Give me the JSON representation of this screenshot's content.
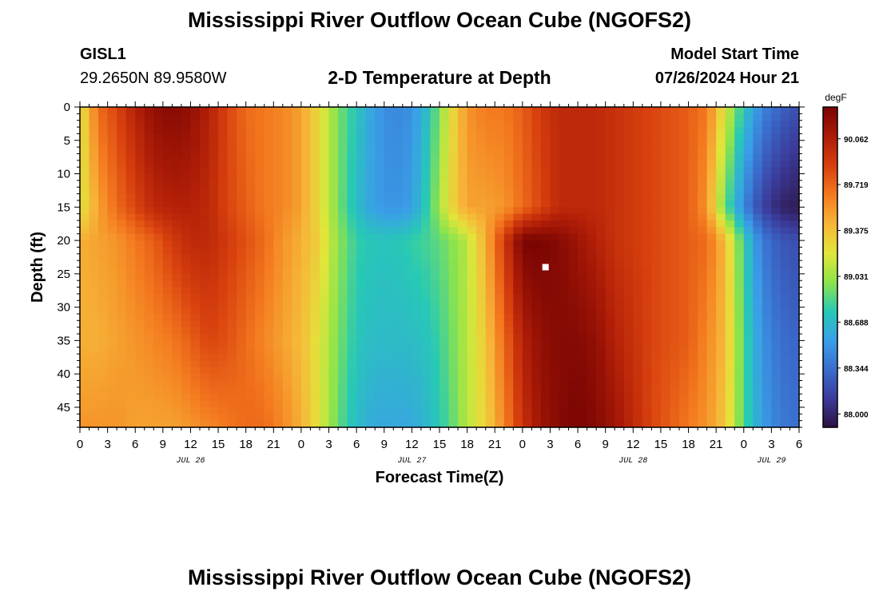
{
  "header": {
    "title": "Mississippi River Outflow Ocean Cube (NGOFS2)",
    "station": "GISL1",
    "coords": "29.2650N  89.9580W",
    "subtitle": "2-D Temperature at Depth",
    "model_start_label": "Model Start Time",
    "model_start_value": "07/26/2024 Hour 21",
    "bottom_title": "Mississippi River Outflow Ocean Cube (NGOFS2)"
  },
  "chart_data": {
    "type": "heatmap",
    "title": "2-D Temperature at Depth",
    "xlabel": "Forecast Time(Z)",
    "ylabel": "Depth (ft)",
    "x_tick_labels": [
      "0",
      "3",
      "6",
      "9",
      "12",
      "15",
      "18",
      "21",
      "0",
      "3",
      "6",
      "9",
      "12",
      "15",
      "18",
      "21",
      "0",
      "3",
      "6",
      "9",
      "12",
      "15",
      "18",
      "21",
      "0",
      "3",
      "6"
    ],
    "x_date_labels": [
      {
        "label": "JUL 26",
        "hour": 12
      },
      {
        "label": "JUL 27",
        "hour": 36
      },
      {
        "label": "JUL 28",
        "hour": 60
      },
      {
        "label": "JUL 29",
        "hour": 75
      }
    ],
    "xlim_hours": [
      0,
      78
    ],
    "y_ticks": [
      0,
      5,
      10,
      15,
      20,
      25,
      30,
      35,
      40,
      45
    ],
    "ylim": [
      0,
      48
    ],
    "y_reversed": true,
    "colorbar": {
      "unit": "degF",
      "ticks": [
        "90.062",
        "89.719",
        "89.375",
        "89.031",
        "88.688",
        "88.344",
        "88.000"
      ],
      "tick_values": [
        90.062,
        89.719,
        89.375,
        89.031,
        88.688,
        88.344,
        88.0
      ],
      "range": [
        87.9,
        90.3
      ],
      "colors": [
        "#2d1140",
        "#3b3b9a",
        "#3a6ccd",
        "#3a9fe8",
        "#27c9b5",
        "#8ee44a",
        "#e2e53a",
        "#f6b638",
        "#f47a1f",
        "#d8400e",
        "#ad1c07",
        "#7a0503"
      ]
    },
    "marker": {
      "hour": 50.5,
      "depth_ft": 24
    },
    "profiles": {
      "hours": [
        0,
        2,
        4,
        6,
        8,
        10,
        12,
        14,
        16,
        18,
        20,
        22,
        24,
        26,
        28,
        30,
        32,
        34,
        36,
        38,
        40,
        42,
        44,
        46,
        48,
        50,
        52,
        54,
        56,
        58,
        60,
        62,
        64,
        66,
        68,
        70,
        72,
        74,
        76,
        78
      ],
      "depths_ft": [
        0,
        15,
        20,
        35,
        48
      ],
      "temps_degF": [
        [
          89.2,
          89.2,
          89.45,
          89.45,
          89.55
        ],
        [
          89.7,
          89.5,
          89.5,
          89.45,
          89.55
        ],
        [
          89.85,
          89.7,
          89.55,
          89.5,
          89.55
        ],
        [
          90.05,
          89.85,
          89.65,
          89.55,
          89.5
        ],
        [
          90.2,
          90.0,
          89.75,
          89.6,
          89.5
        ],
        [
          90.25,
          90.05,
          89.9,
          89.65,
          89.5
        ],
        [
          90.2,
          90.05,
          90.0,
          89.75,
          89.55
        ],
        [
          90.05,
          90.0,
          90.0,
          89.85,
          89.6
        ],
        [
          89.85,
          89.85,
          89.9,
          89.8,
          89.65
        ],
        [
          89.7,
          89.75,
          89.8,
          89.7,
          89.7
        ],
        [
          89.65,
          89.65,
          89.7,
          89.6,
          89.7
        ],
        [
          89.6,
          89.6,
          89.55,
          89.5,
          89.6
        ],
        [
          89.5,
          89.5,
          89.45,
          89.4,
          89.45
        ],
        [
          89.25,
          89.25,
          89.3,
          89.2,
          89.2
        ],
        [
          88.95,
          88.95,
          89.0,
          88.95,
          88.9
        ],
        [
          88.75,
          88.7,
          88.8,
          88.75,
          88.7
        ],
        [
          88.55,
          88.55,
          88.75,
          88.7,
          88.6
        ],
        [
          88.45,
          88.5,
          88.75,
          88.7,
          88.6
        ],
        [
          88.5,
          88.55,
          88.8,
          88.7,
          88.6
        ],
        [
          88.75,
          88.85,
          88.85,
          88.75,
          88.7
        ],
        [
          89.2,
          89.25,
          88.95,
          88.9,
          88.85
        ],
        [
          89.55,
          89.5,
          89.1,
          89.1,
          89.1
        ],
        [
          89.65,
          89.5,
          89.45,
          89.35,
          89.3
        ],
        [
          89.65,
          89.55,
          89.9,
          89.7,
          89.6
        ],
        [
          89.75,
          89.7,
          90.3,
          90.05,
          89.95
        ],
        [
          89.9,
          89.85,
          90.3,
          90.2,
          90.15
        ],
        [
          90.0,
          90.0,
          90.25,
          90.25,
          90.25
        ],
        [
          90.0,
          90.0,
          90.15,
          90.25,
          90.3
        ],
        [
          90.0,
          90.0,
          90.05,
          90.2,
          90.25
        ],
        [
          89.95,
          89.95,
          89.95,
          90.05,
          90.15
        ],
        [
          89.9,
          89.9,
          89.9,
          89.95,
          90.0
        ],
        [
          89.85,
          89.85,
          89.85,
          89.85,
          89.85
        ],
        [
          89.8,
          89.8,
          89.8,
          89.8,
          89.75
        ],
        [
          89.75,
          89.75,
          89.75,
          89.75,
          89.65
        ],
        [
          89.65,
          89.55,
          89.7,
          89.6,
          89.55
        ],
        [
          89.2,
          88.9,
          89.4,
          89.4,
          89.35
        ],
        [
          88.75,
          88.45,
          88.8,
          88.85,
          88.85
        ],
        [
          88.45,
          88.15,
          88.4,
          88.5,
          88.55
        ],
        [
          88.3,
          88.0,
          88.25,
          88.35,
          88.4
        ],
        [
          88.2,
          87.95,
          88.2,
          88.3,
          88.35
        ]
      ]
    }
  }
}
